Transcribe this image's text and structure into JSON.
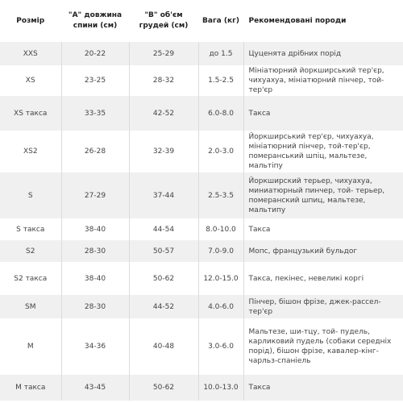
{
  "table": {
    "headers": {
      "size": "Розмір",
      "back_length": "\"A\" довжина спини (см)",
      "chest": "\"B\" об'єм грудей (см)",
      "weight": "Вага (кг)",
      "breeds": "Рекомендовані породи"
    },
    "rows": [
      {
        "size": "XXS",
        "back": "20-22",
        "chest": "25-29",
        "weight": "до 1.5",
        "breeds": "Цуценята дрібних порід"
      },
      {
        "size": "XS",
        "back": "23-25",
        "chest": "28-32",
        "weight": "1.5-2.5",
        "breeds": "Мініатюрний йоркширський тер'єр, чихуахуа, мініатюрний пінчер, той-тер'єр"
      },
      {
        "size": "XS такса",
        "back": "33-35",
        "chest": "42-52",
        "weight": "6.0-8.0",
        "breeds": "Такса"
      },
      {
        "size": "XS2",
        "back": "26-28",
        "chest": "32-39",
        "weight": "2.0-3.0",
        "breeds": "Йоркширський тер'єр, чихуахуа, мініатюрний пінчер, той-тер'єр, померанський шпіц, мальтезе, мальтіпу"
      },
      {
        "size": "S",
        "back": "27-29",
        "chest": "37-44",
        "weight": "2.5-3.5",
        "breeds": "Йоркширский терьер, чихуахуа, миниатюрный пинчер, той- терьер, померанский шпиц, мальтезе, мальтипу"
      },
      {
        "size": "S такса",
        "back": "38-40",
        "chest": "44-54",
        "weight": "8.0-10.0",
        "breeds": "Такса"
      },
      {
        "size": "S2",
        "back": "28-30",
        "chest": "50-57",
        "weight": "7.0-9.0",
        "breeds": "Мопс, французький бульдог"
      },
      {
        "size": "S2 такса",
        "back": "38-40",
        "chest": "50-62",
        "weight": "12.0-15.0",
        "breeds": "Такса, пекінес, невеликі коргі"
      },
      {
        "size": "SM",
        "back": "28-30",
        "chest": "44-52",
        "weight": "4.0-6.0",
        "breeds": "Пінчер, бішон фрізе, джек-рассел-тер'єр"
      },
      {
        "size": "M",
        "back": "34-36",
        "chest": "40-48",
        "weight": "3.0-6.0",
        "breeds": "Мальтезе, ши-тцу, той- пудель, карликовий пудель (собаки середніх порід), бішон фрізе, кавалер-кінг-чарльз-спаніель"
      },
      {
        "size": "M такса",
        "back": "43-45",
        "chest": "50-62",
        "weight": "10.0-13.0",
        "breeds": "Такса"
      }
    ]
  }
}
